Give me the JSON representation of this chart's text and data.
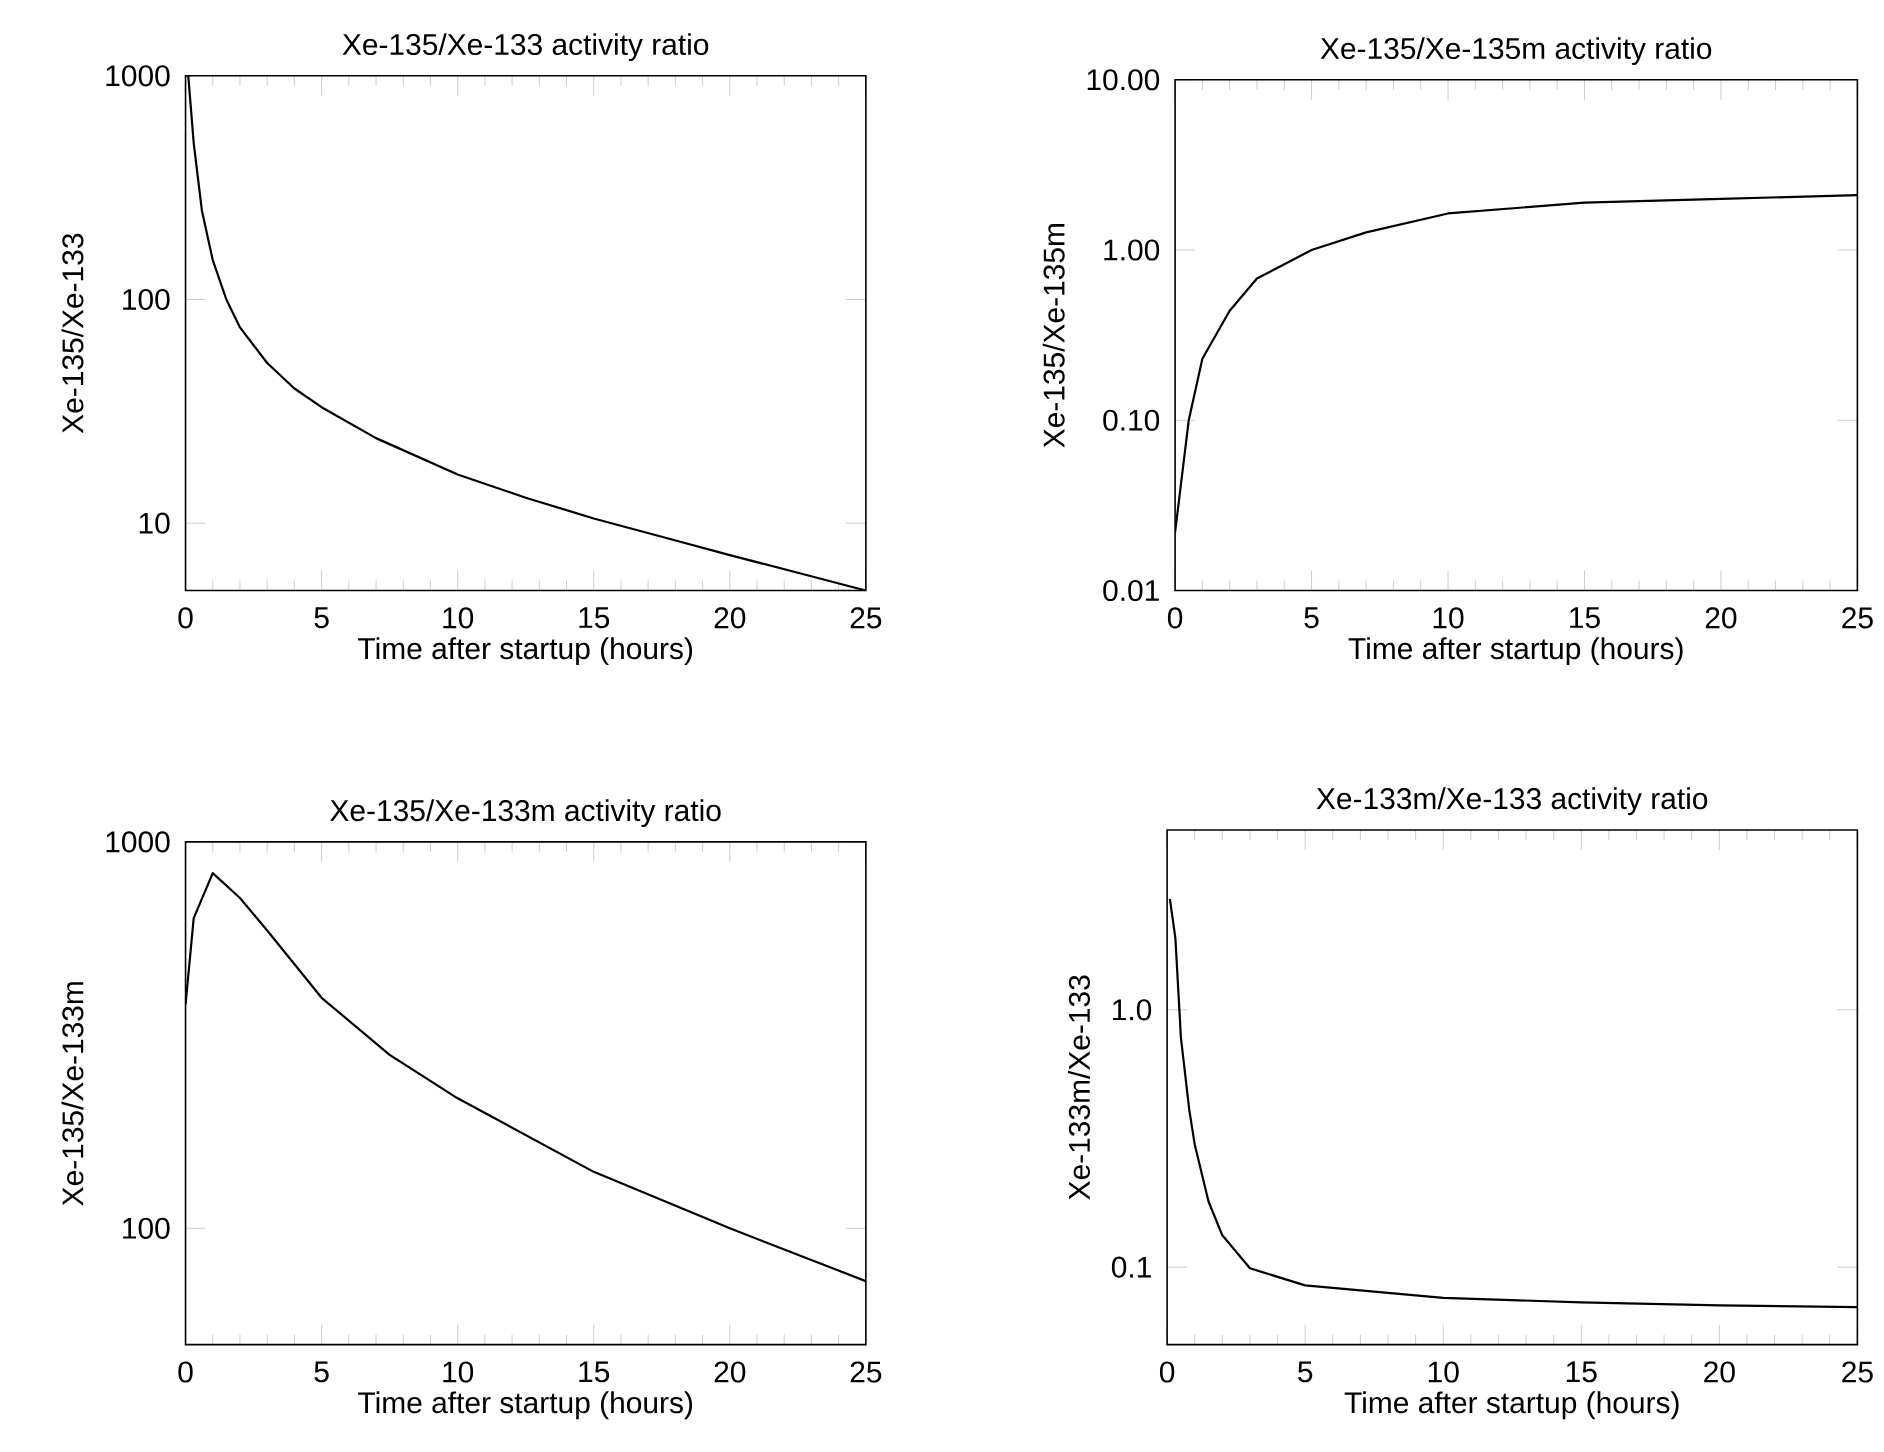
{
  "chart_data": [
    {
      "type": "line",
      "title": "Xe-135/Xe-133 activity ratio",
      "xlabel": "Time after startup (hours)",
      "ylabel": "Xe-135/Xe-133",
      "log": "y",
      "xlim": [
        0,
        25
      ],
      "ylim": [
        5,
        1000
      ],
      "xticks": [
        0,
        5,
        10,
        15,
        20,
        25
      ],
      "yticks": [
        10,
        100,
        1000
      ],
      "x": [
        0.1,
        0.3,
        0.6,
        1,
        1.5,
        2,
        3,
        4,
        5,
        7,
        10,
        12.5,
        15,
        17.5,
        20,
        22.5,
        25
      ],
      "series": [
        {
          "color": "#000000",
          "values": [
            1000,
            500,
            250,
            150,
            100,
            75,
            52,
            40,
            33,
            24,
            16.5,
            13,
            10.5,
            8.7,
            7.2,
            6,
            5
          ]
        }
      ]
    },
    {
      "type": "line",
      "title": "Xe-135/Xe-135m activity ratio",
      "xlabel": "Time after startup (hours)",
      "ylabel": "Xe-135/Xe-135m",
      "log": "y",
      "xlim": [
        0,
        25
      ],
      "ylim": [
        0.01,
        10
      ],
      "xticks": [
        0,
        5,
        10,
        15,
        20,
        25
      ],
      "yticks": [
        {
          "value": 0.01,
          "label": "0.01"
        },
        {
          "value": 0.1,
          "label": "0.10"
        },
        {
          "value": 1,
          "label": "1.00"
        },
        {
          "value": 10,
          "label": "10.00"
        }
      ],
      "x": [
        0,
        0.5,
        1,
        2,
        3,
        5,
        7,
        10,
        15,
        20,
        25
      ],
      "series": [
        {
          "color": "#000000",
          "values": [
            0.022,
            0.1,
            0.23,
            0.44,
            0.68,
            1.0,
            1.27,
            1.64,
            1.9,
            2.0,
            2.1
          ]
        }
      ]
    },
    {
      "type": "line",
      "title": "Xe-135/Xe-133m activity ratio",
      "xlabel": "Time after startup (hours)",
      "ylabel": "Xe-135/Xe-133m",
      "log": "y",
      "xlim": [
        0,
        25
      ],
      "ylim": [
        50,
        1000
      ],
      "xticks": [
        0,
        5,
        10,
        15,
        20,
        25
      ],
      "yticks": [
        100,
        1000
      ],
      "x": [
        0,
        0.3,
        1,
        2,
        3,
        5,
        7.5,
        10,
        15,
        20,
        25
      ],
      "series": [
        {
          "color": "#000000",
          "values": [
            380,
            635,
            830,
            716,
            590,
            395,
            281,
            217,
            140,
            100,
            73
          ]
        }
      ]
    },
    {
      "type": "line",
      "title": "Xe-133m/Xe-133 activity ratio",
      "xlabel": "Time after startup (hours)",
      "ylabel": "Xe-133m/Xe-133",
      "log": "y",
      "xlim": [
        0,
        25
      ],
      "ylim": [
        0.05,
        5
      ],
      "xticks": [
        0,
        5,
        10,
        15,
        20,
        25
      ],
      "yticks": [
        0.1,
        {
          "value": 1,
          "label": "1.0"
        }
      ],
      "x": [
        0.1,
        0.3,
        0.5,
        0.8,
        1,
        1.5,
        2,
        3,
        5,
        10,
        15,
        20,
        25
      ],
      "series": [
        {
          "color": "#000000",
          "values": [
            2.7,
            1.9,
            0.78,
            0.41,
            0.3,
            0.18,
            0.133,
            0.099,
            0.085,
            0.076,
            0.073,
            0.071,
            0.07
          ]
        }
      ]
    }
  ]
}
